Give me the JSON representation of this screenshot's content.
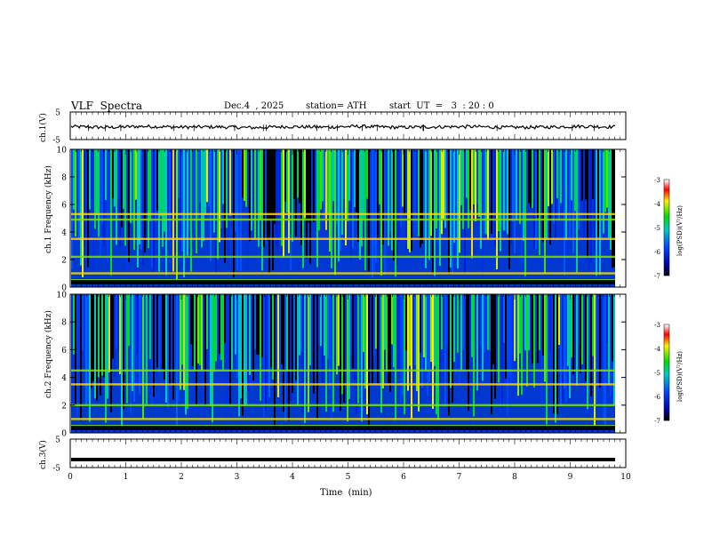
{
  "header": {
    "title": "VLF  Spectra",
    "date": "Dec.4  , 2025",
    "station": "station= ATH",
    "start": "start  UT  =   3  : 20 : 0"
  },
  "chart_data": [
    {
      "type": "line",
      "panel": "ch1-waveform",
      "ylabel": "ch.1(V)",
      "ylim": [
        -5,
        5
      ],
      "yticks": [
        "5",
        "-5"
      ],
      "xlim": [
        0,
        10
      ],
      "series": [
        {
          "values": [
            -0.3,
            -0.6,
            -0.2,
            -0.5,
            -0.4,
            -0.7,
            -0.3,
            -0.5,
            -0.2,
            -0.6,
            -0.4,
            -0.3,
            -0.6,
            -0.5,
            -0.2,
            -0.4
          ]
        }
      ],
      "grid": false
    },
    {
      "type": "heatmap",
      "panel": "ch1-spectrogram",
      "ylabel": "ch.1 Frequency (kHz)",
      "ylim": [
        0,
        10
      ],
      "yticks": [
        "0",
        "2",
        "4",
        "6",
        "8",
        "10"
      ],
      "xlim": [
        0,
        10
      ],
      "colorbar": {
        "label": "log(PSD)(V²/Hz)",
        "range": [
          -7,
          -3
        ],
        "ticks": [
          "-3",
          "-4",
          "-5",
          "-6",
          "-7"
        ]
      },
      "bands_khz": [
        0.5,
        1.0,
        2.2,
        3.5,
        4.9,
        5.3
      ]
    },
    {
      "type": "heatmap",
      "panel": "ch2-spectrogram",
      "ylabel": "ch.2 Frequency (kHz)",
      "ylim": [
        0,
        10
      ],
      "yticks": [
        "0",
        "2",
        "4",
        "6",
        "8",
        "10"
      ],
      "xlim": [
        0,
        10
      ],
      "colorbar": {
        "label": "log(PSD)(V²/Hz)",
        "range": [
          -7,
          -3
        ],
        "ticks": [
          "-3",
          "-4",
          "-5",
          "-6",
          "-7"
        ]
      },
      "bands_khz": [
        0.5,
        1.0,
        2.0,
        3.5,
        4.5
      ]
    },
    {
      "type": "line",
      "panel": "ch3-waveform",
      "ylabel": "ch.3(V)",
      "ylim": [
        -5,
        5
      ],
      "yticks": [
        "5",
        "-5"
      ],
      "xlim": [
        0,
        10
      ],
      "xlabel": "Time  (min)",
      "xticks": [
        "0",
        "1",
        "2",
        "3",
        "4",
        "5",
        "6",
        "7",
        "8",
        "9",
        "10"
      ],
      "series": [
        {
          "values": [
            -2.2,
            -2.2,
            -2.2,
            -2.2,
            -2.2,
            -2.2,
            -2.2,
            -2.2,
            -2.2,
            -2.2,
            -2.2
          ]
        }
      ]
    }
  ],
  "colors": {
    "scale": [
      "#000000",
      "#0000b4",
      "#0050ff",
      "#00c8c8",
      "#00e000",
      "#ffff00",
      "#ff0000",
      "#ffffff"
    ]
  }
}
